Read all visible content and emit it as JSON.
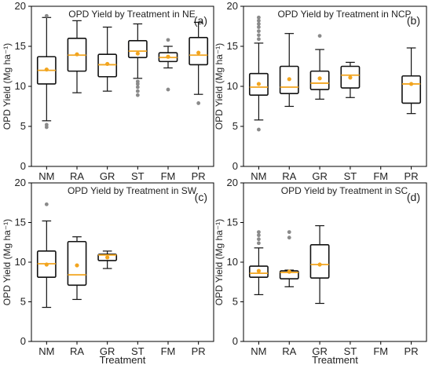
{
  "figure": {
    "categories": [
      "NM",
      "RA",
      "GR",
      "ST",
      "FM",
      "PR"
    ],
    "ylabel": "OPD Yield (Mg ha⁻¹)",
    "xlabel": "Treatment"
  },
  "colors": {
    "box": "#111111",
    "median": "#f2a51f",
    "mean": "#f2a51f",
    "outlier": "#8a8a8a"
  },
  "chart_data": [
    {
      "type": "box",
      "panel_label": "(a)",
      "title": "OPD Yield by Treatment in NE",
      "categories": [
        "NM",
        "RA",
        "GR",
        "ST",
        "FM",
        "PR"
      ],
      "ylim": [
        0,
        20
      ],
      "yticks": [
        0,
        5,
        10,
        15,
        20
      ],
      "show_xlabel": false,
      "boxes": [
        {
          "category": "NM",
          "q1": 10.3,
          "median": 12.0,
          "q3": 13.7,
          "whisker_low": 5.7,
          "whisker_high": 18.6,
          "mean": 12.1,
          "outliers": [
            4.9,
            5.2,
            18.8
          ]
        },
        {
          "category": "RA",
          "q1": 11.9,
          "median": 13.9,
          "q3": 16.0,
          "whisker_low": 9.2,
          "whisker_high": 18.2,
          "mean": 14.0,
          "outliers": []
        },
        {
          "category": "GR",
          "q1": 11.2,
          "median": 12.7,
          "q3": 14.0,
          "whisker_low": 9.4,
          "whisker_high": 17.4,
          "mean": 12.8,
          "outliers": []
        },
        {
          "category": "ST",
          "q1": 13.6,
          "median": 14.4,
          "q3": 15.7,
          "whisker_low": 11.0,
          "whisker_high": 17.8,
          "mean": 14.1,
          "outliers": [
            8.9,
            9.4,
            9.9,
            10.3,
            10.6
          ]
        },
        {
          "category": "FM",
          "q1": 13.1,
          "median": 13.6,
          "q3": 14.2,
          "whisker_low": 12.3,
          "whisker_high": 15.0,
          "mean": 13.7,
          "outliers": [
            9.6,
            15.8
          ]
        },
        {
          "category": "PR",
          "q1": 12.7,
          "median": 13.9,
          "q3": 16.1,
          "whisker_low": 9.0,
          "whisker_high": 18.0,
          "mean": 14.2,
          "outliers": [
            7.9
          ]
        }
      ]
    },
    {
      "type": "box",
      "panel_label": "(b)",
      "title": "OPD Yield by Treatment in NCP",
      "categories": [
        "NM",
        "RA",
        "GR",
        "ST",
        "FM",
        "PR"
      ],
      "ylim": [
        0,
        20
      ],
      "yticks": [
        0,
        5,
        10,
        15,
        20
      ],
      "show_xlabel": false,
      "boxes": [
        {
          "category": "NM",
          "q1": 8.9,
          "median": 9.9,
          "q3": 11.6,
          "whisker_low": 5.8,
          "whisker_high": 15.4,
          "mean": 10.3,
          "outliers": [
            4.6,
            15.9,
            16.4,
            16.9,
            17.4,
            17.8,
            18.2,
            18.6
          ]
        },
        {
          "category": "RA",
          "q1": 9.1,
          "median": 9.9,
          "q3": 12.5,
          "whisker_low": 7.5,
          "whisker_high": 16.6,
          "mean": 10.9,
          "outliers": []
        },
        {
          "category": "GR",
          "q1": 9.6,
          "median": 10.4,
          "q3": 11.9,
          "whisker_low": 8.4,
          "whisker_high": 14.6,
          "mean": 11.0,
          "outliers": [
            16.3
          ]
        },
        {
          "category": "ST",
          "q1": 9.8,
          "median": 11.4,
          "q3": 12.5,
          "whisker_low": 8.6,
          "whisker_high": 13.0,
          "mean": 11.1,
          "outliers": []
        },
        {
          "category": "PR",
          "q1": 7.9,
          "median": 10.3,
          "q3": 11.3,
          "whisker_low": 6.6,
          "whisker_high": 14.8,
          "mean": 10.3,
          "outliers": []
        }
      ]
    },
    {
      "type": "box",
      "panel_label": "(c)",
      "title": "OPD Yield by Treatment in SW",
      "categories": [
        "NM",
        "RA",
        "GR",
        "ST",
        "FM",
        "PR"
      ],
      "ylim": [
        0,
        20
      ],
      "yticks": [
        0,
        5,
        10,
        15,
        20
      ],
      "show_xlabel": true,
      "boxes": [
        {
          "category": "NM",
          "q1": 8.1,
          "median": 9.8,
          "q3": 11.4,
          "whisker_low": 4.3,
          "whisker_high": 15.2,
          "mean": 9.7,
          "outliers": [
            17.3
          ]
        },
        {
          "category": "RA",
          "q1": 7.1,
          "median": 8.4,
          "q3": 12.6,
          "whisker_low": 5.3,
          "whisker_high": 13.2,
          "mean": 9.6,
          "outliers": []
        },
        {
          "category": "GR",
          "q1": 10.2,
          "median": 10.9,
          "q3": 11.0,
          "whisker_low": 9.2,
          "whisker_high": 11.4,
          "mean": 10.6,
          "outliers": []
        }
      ]
    },
    {
      "type": "box",
      "panel_label": "(d)",
      "title": "OPD Yield by Treatment in SC",
      "categories": [
        "NM",
        "RA",
        "GR",
        "ST",
        "FM",
        "PR"
      ],
      "ylim": [
        0,
        20
      ],
      "yticks": [
        0,
        5,
        10,
        15,
        20
      ],
      "show_xlabel": true,
      "boxes": [
        {
          "category": "NM",
          "q1": 8.1,
          "median": 8.6,
          "q3": 9.5,
          "whisker_low": 5.9,
          "whisker_high": 11.8,
          "mean": 8.9,
          "outliers": [
            12.4,
            12.9,
            13.4,
            13.8
          ]
        },
        {
          "category": "RA",
          "q1": 7.9,
          "median": 8.7,
          "q3": 8.9,
          "whisker_low": 6.9,
          "whisker_high": 9.0,
          "mean": 8.8,
          "outliers": [
            13.1,
            13.8
          ]
        },
        {
          "category": "GR",
          "q1": 8.0,
          "median": 9.7,
          "q3": 12.2,
          "whisker_low": 4.8,
          "whisker_high": 14.6,
          "mean": 9.7,
          "outliers": []
        }
      ]
    }
  ]
}
